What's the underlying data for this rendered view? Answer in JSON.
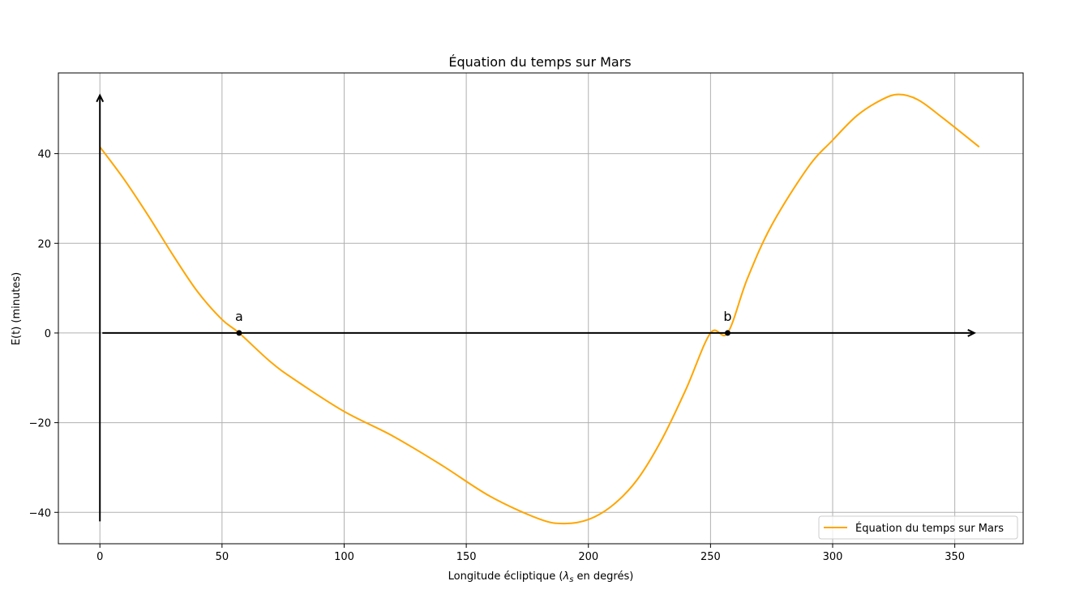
{
  "chart_data": {
    "type": "line",
    "title": "Équation du temps sur Mars",
    "xlabel": "Longitude écliptique (λs en degrés)",
    "xlabel_parts": {
      "prefix": "Longitude écliptique (",
      "symbol": "λ",
      "subscript": "s",
      "suffix": " en degrés)"
    },
    "ylabel": "E(t) (minutes)",
    "xlim": [
      -17,
      378
    ],
    "ylim": [
      -47,
      58
    ],
    "xticks": [
      0,
      50,
      100,
      150,
      200,
      250,
      300,
      350
    ],
    "yticks": [
      -40,
      -20,
      0,
      20,
      40
    ],
    "xtick_labels": [
      "0",
      "50",
      "100",
      "150",
      "200",
      "250",
      "300",
      "350"
    ],
    "ytick_labels": [
      "−40",
      "−20",
      "0",
      "20",
      "40"
    ],
    "grid": true,
    "legend_position": "lower-right",
    "series": [
      {
        "name": "Équation du temps sur Mars",
        "color": "#FFA500",
        "x": [
          0,
          10,
          20,
          30,
          40,
          50,
          57,
          70,
          80,
          100,
          120,
          140,
          160,
          180,
          190,
          200,
          210,
          220,
          230,
          240,
          250,
          257,
          265,
          275,
          290,
          300,
          310,
          320,
          327,
          335,
          345,
          360
        ],
        "y": [
          41.5,
          34.2,
          26.0,
          17.3,
          9.2,
          3.0,
          0.0,
          -6.5,
          -10.5,
          -17.5,
          -23.0,
          -29.5,
          -36.5,
          -41.5,
          -42.5,
          -41.6,
          -38.4,
          -32.7,
          -23.8,
          -12.5,
          0.0,
          0.0,
          12.0,
          24.0,
          37.0,
          43.0,
          48.5,
          52.0,
          53.2,
          52.0,
          48.0,
          41.5
        ]
      }
    ],
    "arrows": {
      "vertical": {
        "x": 0,
        "y_start": -42,
        "y_end": 53
      },
      "horizontal": {
        "y": 0,
        "x_start": 1,
        "x_end": 358
      }
    },
    "points": [
      {
        "label": "a",
        "x": 57,
        "y": 0
      },
      {
        "label": "b",
        "x": 257,
        "y": 0
      }
    ],
    "axis_color": "#000000",
    "grid_color": "#b0b0b0"
  }
}
